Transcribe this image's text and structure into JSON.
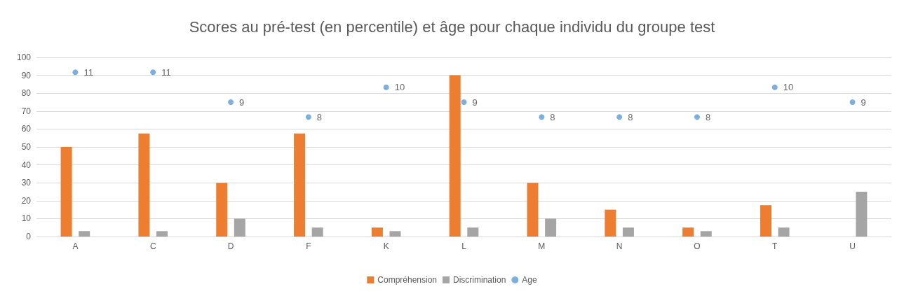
{
  "chart_data": {
    "type": "bar",
    "title": "Scores au pré-test (en percentile) et âge pour chaque individu du groupe test",
    "categories": [
      "A",
      "C",
      "D",
      "F",
      "K",
      "L",
      "M",
      "N",
      "O",
      "T",
      "U"
    ],
    "series": [
      {
        "name": "Compréhension",
        "color": "#ed7d31",
        "values": [
          50,
          57.5,
          30,
          57.5,
          5,
          90,
          30,
          15,
          5,
          17.5,
          null
        ]
      },
      {
        "name": "Discrimination",
        "color": "#a5a5a5",
        "values": [
          3,
          3,
          10,
          5,
          3,
          5,
          10,
          5,
          3,
          5,
          25
        ]
      },
      {
        "name": "Age",
        "type": "scatter",
        "axis": "y2",
        "marker": "circle",
        "color": "#5b9bd5",
        "values": [
          11,
          11,
          9,
          8,
          10,
          9,
          8,
          8,
          8,
          10,
          9
        ],
        "value_labels": [
          "11",
          "11",
          "9",
          "8",
          "10",
          "9",
          "8",
          "8",
          "8",
          "10",
          "9"
        ]
      }
    ],
    "ylim": [
      0,
      100
    ],
    "yticks": [
      0,
      10,
      20,
      30,
      40,
      50,
      60,
      70,
      80,
      90,
      100
    ],
    "y2lim": [
      0,
      12
    ],
    "grid": "y",
    "legend": "bottom"
  }
}
